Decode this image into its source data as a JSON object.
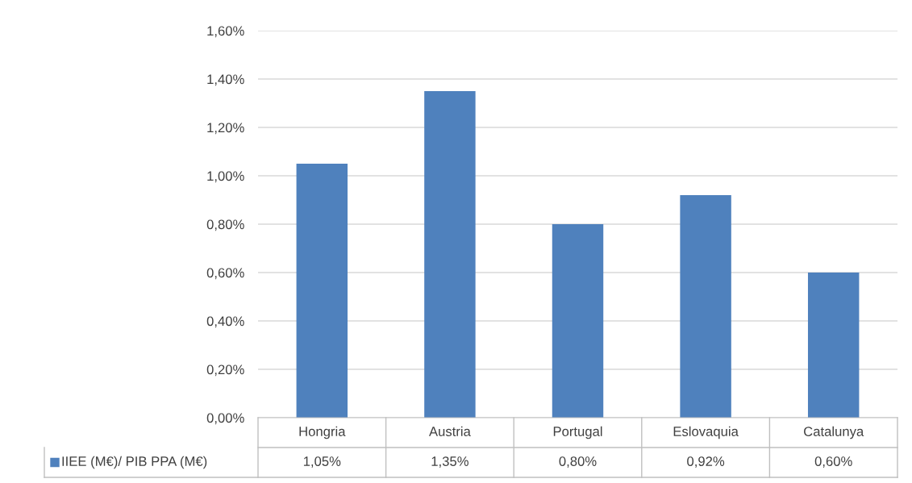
{
  "chart_data": {
    "type": "bar",
    "categories": [
      "Hongria",
      "Austria",
      "Portugal",
      "Eslovaquia",
      "Catalunya"
    ],
    "series": [
      {
        "name": "IIEE (M€)/ PIB PPA (M€)",
        "color": "#4f81bd",
        "values": [
          1.05,
          1.35,
          0.8,
          0.92,
          0.6
        ],
        "value_labels": [
          "1,05%",
          "1,35%",
          "0,80%",
          "0,92%",
          "0,60%"
        ]
      }
    ],
    "ylim": [
      0,
      1.6
    ],
    "yticks": [
      {
        "value": 0,
        "label": "0,00%"
      },
      {
        "value": 0.2,
        "label": "0,20%"
      },
      {
        "value": 0.4,
        "label": "0,40%"
      },
      {
        "value": 0.6,
        "label": "0,60%"
      },
      {
        "value": 0.8,
        "label": "0,80%"
      },
      {
        "value": 1.0,
        "label": "1,00%"
      },
      {
        "value": 1.2,
        "label": "1,20%"
      },
      {
        "value": 1.4,
        "label": "1,40%"
      },
      {
        "value": 1.6,
        "label": "1,60%"
      }
    ],
    "grid": "y",
    "legend": "bottom"
  }
}
